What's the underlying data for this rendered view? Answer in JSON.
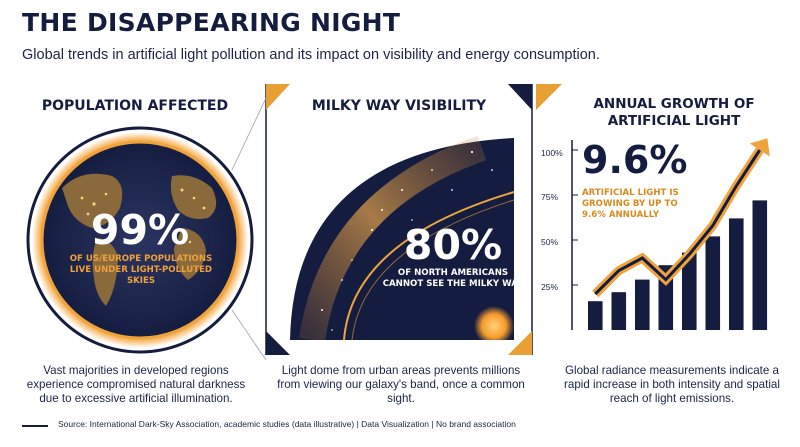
{
  "header": {
    "title": "THE DISAPPEARING NIGHT",
    "subtitle": "Global trends in artificial light pollution and its impact on visibility and energy consumption."
  },
  "panels": [
    {
      "heading": "POPULATION AFFECTED",
      "stat": "99%",
      "stat_caption": "OF US/EUROPE POPULATIONS LIVE UNDER LIGHT-POLLUTED SKIES",
      "description": "Vast majorities in developed regions experience compromised natural darkness due to excessive artificial illumination."
    },
    {
      "heading": "MILKY WAY VISIBILITY",
      "stat": "80%",
      "stat_caption": "OF NORTH AMERICANS CANNOT SEE THE MILKY WAY",
      "description": "Light dome from urban areas prevents millions from viewing our galaxy's band, once a common sight."
    },
    {
      "heading": "ANNUAL GROWTH OF ARTIFICIAL LIGHT",
      "stat": "9.6%",
      "stat_caption": "ARTIFICIAL LIGHT IS GROWING BY UP TO 9.6% ANNUALLY",
      "description": "Global radiance measurements indicate a rapid increase in both intensity and spatial reach of light emissions."
    }
  ],
  "chart_data": {
    "type": "bar",
    "yticks": [
      "100%",
      "75%",
      "50%",
      "25%"
    ],
    "ylim": [
      0,
      100
    ],
    "values": [
      16,
      21,
      28,
      36,
      43,
      52,
      62,
      72
    ],
    "trend_arrow": [
      20,
      33,
      40,
      28,
      42,
      58,
      80,
      100
    ]
  },
  "colors": {
    "navy": "#141c40",
    "gold": "#e8a035",
    "bright_gold": "#f7b84b"
  },
  "footer": {
    "source": "Source: International Dark-Sky Association, academic studies (data illustrative) | Data Visualization | No brand association"
  }
}
